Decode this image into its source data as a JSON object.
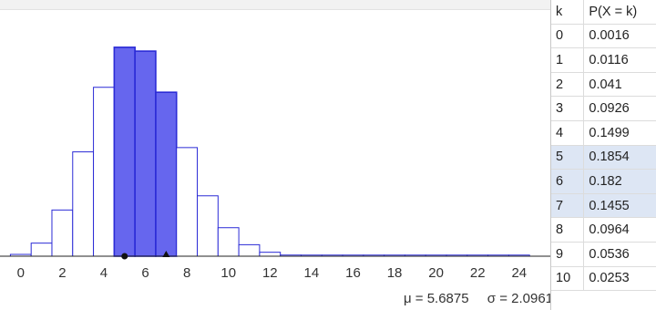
{
  "chart_data": {
    "type": "bar",
    "x": [
      0,
      1,
      2,
      3,
      4,
      5,
      6,
      7,
      8,
      9,
      10,
      11,
      12,
      13,
      14,
      15,
      16,
      17,
      18,
      19,
      20,
      21,
      22,
      23,
      24
    ],
    "values": [
      0.0016,
      0.0116,
      0.041,
      0.0926,
      0.1499,
      0.1854,
      0.182,
      0.1455,
      0.0964,
      0.0536,
      0.0253,
      0.0102,
      0.0035,
      0.001,
      0.0003,
      0.0001,
      0,
      0,
      0,
      0,
      0,
      0,
      0,
      0,
      0
    ],
    "highlighted": [
      5,
      6,
      7
    ],
    "xticks": [
      0,
      2,
      4,
      6,
      8,
      10,
      12,
      14,
      16,
      18,
      20,
      22,
      24
    ],
    "xlim": [
      -1,
      25.5
    ],
    "ylim": [
      0,
      0.195
    ],
    "colors": {
      "bar_fill": "#ffffff",
      "bar_stroke": "#2b2bd6",
      "highlight_fill": "#6666ee",
      "axis": "#222222",
      "markers": "#111111"
    },
    "markers": [
      5,
      7
    ]
  },
  "stats": {
    "mean": "μ = 5.6875",
    "sd": "σ = 2.0961"
  },
  "table": {
    "headers": {
      "k": "k",
      "p": "P(X = k)"
    },
    "rows": [
      {
        "k": "0",
        "p": "0.0016",
        "highlight": false
      },
      {
        "k": "1",
        "p": "0.0116",
        "highlight": false
      },
      {
        "k": "2",
        "p": "0.041",
        "highlight": false
      },
      {
        "k": "3",
        "p": "0.0926",
        "highlight": false
      },
      {
        "k": "4",
        "p": "0.1499",
        "highlight": false
      },
      {
        "k": "5",
        "p": "0.1854",
        "highlight": true
      },
      {
        "k": "6",
        "p": "0.182",
        "highlight": true
      },
      {
        "k": "7",
        "p": "0.1455",
        "highlight": true
      },
      {
        "k": "8",
        "p": "0.0964",
        "highlight": false
      },
      {
        "k": "9",
        "p": "0.0536",
        "highlight": false
      },
      {
        "k": "10",
        "p": "0.0253",
        "highlight": false
      }
    ]
  }
}
